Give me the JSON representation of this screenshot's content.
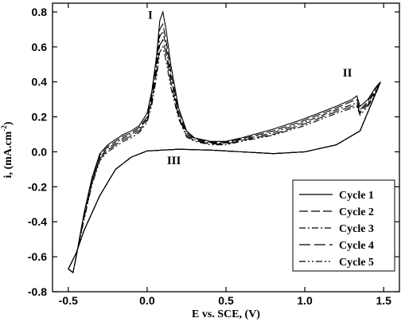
{
  "chart_data": {
    "type": "line",
    "xlabel": "E vs. SCE, (V)",
    "ylabel": "i, (mA.cm⁻²)",
    "ylabel_base": "i, (mA.cm",
    "ylabel_sup": "-2",
    "ylabel_end": ")",
    "xlim": [
      -0.6,
      1.6
    ],
    "ylim": [
      -0.8,
      0.85
    ],
    "xticks": [
      -0.5,
      0.0,
      0.5,
      1.0,
      1.5
    ],
    "xtick_labels": [
      "-0.5",
      "0.0",
      "0.5",
      "1.0",
      "1.5"
    ],
    "yticks": [
      -0.8,
      -0.6,
      -0.4,
      -0.2,
      0.0,
      0.2,
      0.4,
      0.6,
      0.8
    ],
    "ytick_labels": [
      "-0.8",
      "-0.6",
      "-0.4",
      "-0.2",
      "0.0",
      "0.2",
      "0.4",
      "0.6",
      "0.8"
    ],
    "grid": false,
    "legend_position": "bottom-right",
    "annotations": [
      {
        "text": "I",
        "x": 0.02,
        "y": 0.76
      },
      {
        "text": "II",
        "x": 1.27,
        "y": 0.43
      },
      {
        "text": "III",
        "x": 0.17,
        "y": -0.07
      }
    ],
    "reverse_scan": {
      "x": [
        1.48,
        1.35,
        1.2,
        1.0,
        0.8,
        0.6,
        0.4,
        0.2,
        0.0,
        -0.1,
        -0.2,
        -0.3,
        -0.4,
        -0.45,
        -0.5
      ],
      "y": [
        0.4,
        0.12,
        0.04,
        0.0,
        -0.01,
        0.0,
        0.01,
        0.015,
        0.005,
        -0.03,
        -0.1,
        -0.25,
        -0.45,
        -0.58,
        -0.67
      ]
    },
    "series": [
      {
        "name": "Cycle 1",
        "dash": "",
        "x": [
          -0.5,
          -0.47,
          -0.45,
          -0.4,
          -0.35,
          -0.3,
          -0.25,
          -0.2,
          -0.15,
          -0.1,
          -0.05,
          0.0,
          0.03,
          0.06,
          0.08,
          0.1,
          0.12,
          0.15,
          0.2,
          0.25,
          0.3,
          0.4,
          0.5,
          0.6,
          0.8,
          1.0,
          1.2,
          1.3,
          1.33,
          1.35,
          1.4,
          1.45,
          1.48
        ],
        "y": [
          -0.67,
          -0.69,
          -0.6,
          -0.35,
          -0.15,
          -0.01,
          0.04,
          0.07,
          0.1,
          0.12,
          0.15,
          0.22,
          0.35,
          0.55,
          0.75,
          0.8,
          0.7,
          0.5,
          0.25,
          0.12,
          0.08,
          0.06,
          0.06,
          0.08,
          0.13,
          0.19,
          0.26,
          0.3,
          0.32,
          0.26,
          0.3,
          0.37,
          0.4
        ]
      },
      {
        "name": "Cycle 2",
        "dash": "11 4",
        "x": [
          -0.5,
          -0.47,
          -0.45,
          -0.4,
          -0.35,
          -0.3,
          -0.25,
          -0.2,
          -0.15,
          -0.1,
          -0.05,
          0.0,
          0.03,
          0.06,
          0.08,
          0.1,
          0.12,
          0.15,
          0.2,
          0.25,
          0.3,
          0.4,
          0.5,
          0.6,
          0.8,
          1.0,
          1.2,
          1.3,
          1.33,
          1.35,
          1.4,
          1.45,
          1.48
        ],
        "y": [
          -0.67,
          -0.69,
          -0.6,
          -0.36,
          -0.16,
          -0.02,
          0.03,
          0.06,
          0.09,
          0.11,
          0.14,
          0.2,
          0.33,
          0.52,
          0.7,
          0.73,
          0.64,
          0.46,
          0.23,
          0.11,
          0.075,
          0.055,
          0.055,
          0.075,
          0.12,
          0.18,
          0.25,
          0.29,
          0.3,
          0.24,
          0.29,
          0.36,
          0.4
        ]
      },
      {
        "name": "Cycle 3",
        "dash": "8 3 2 3",
        "x": [
          -0.5,
          -0.47,
          -0.45,
          -0.4,
          -0.35,
          -0.3,
          -0.25,
          -0.2,
          -0.15,
          -0.1,
          -0.05,
          0.0,
          0.03,
          0.06,
          0.08,
          0.1,
          0.12,
          0.15,
          0.2,
          0.25,
          0.3,
          0.4,
          0.5,
          0.6,
          0.8,
          1.0,
          1.2,
          1.3,
          1.33,
          1.35,
          1.4,
          1.45,
          1.48
        ],
        "y": [
          -0.67,
          -0.69,
          -0.6,
          -0.37,
          -0.17,
          -0.03,
          0.02,
          0.05,
          0.08,
          0.1,
          0.13,
          0.19,
          0.31,
          0.49,
          0.66,
          0.69,
          0.6,
          0.43,
          0.21,
          0.1,
          0.07,
          0.05,
          0.05,
          0.07,
          0.11,
          0.17,
          0.24,
          0.27,
          0.28,
          0.23,
          0.28,
          0.35,
          0.4
        ]
      },
      {
        "name": "Cycle 4",
        "dash": "14 5",
        "x": [
          -0.5,
          -0.47,
          -0.45,
          -0.4,
          -0.35,
          -0.3,
          -0.25,
          -0.2,
          -0.15,
          -0.1,
          -0.05,
          0.0,
          0.03,
          0.06,
          0.08,
          0.1,
          0.12,
          0.15,
          0.2,
          0.25,
          0.3,
          0.4,
          0.5,
          0.6,
          0.8,
          1.0,
          1.2,
          1.3,
          1.33,
          1.35,
          1.4,
          1.45,
          1.48
        ],
        "y": [
          -0.67,
          -0.69,
          -0.6,
          -0.38,
          -0.18,
          -0.04,
          0.01,
          0.04,
          0.07,
          0.09,
          0.12,
          0.18,
          0.29,
          0.46,
          0.61,
          0.64,
          0.56,
          0.4,
          0.2,
          0.09,
          0.065,
          0.045,
          0.045,
          0.065,
          0.1,
          0.16,
          0.23,
          0.26,
          0.27,
          0.22,
          0.27,
          0.34,
          0.4
        ]
      },
      {
        "name": "Cycle 5",
        "dash": "8 3 2 3 2 3",
        "x": [
          -0.5,
          -0.47,
          -0.45,
          -0.4,
          -0.35,
          -0.3,
          -0.25,
          -0.2,
          -0.15,
          -0.1,
          -0.05,
          0.0,
          0.03,
          0.06,
          0.08,
          0.1,
          0.12,
          0.15,
          0.2,
          0.25,
          0.3,
          0.4,
          0.5,
          0.6,
          0.8,
          1.0,
          1.2,
          1.3,
          1.33,
          1.35,
          1.4,
          1.45,
          1.48
        ],
        "y": [
          -0.67,
          -0.69,
          -0.6,
          -0.39,
          -0.19,
          -0.05,
          0.0,
          0.03,
          0.06,
          0.08,
          0.11,
          0.17,
          0.27,
          0.43,
          0.57,
          0.6,
          0.52,
          0.37,
          0.19,
          0.085,
          0.06,
          0.04,
          0.04,
          0.06,
          0.095,
          0.15,
          0.22,
          0.25,
          0.26,
          0.21,
          0.26,
          0.33,
          0.4
        ]
      }
    ]
  }
}
